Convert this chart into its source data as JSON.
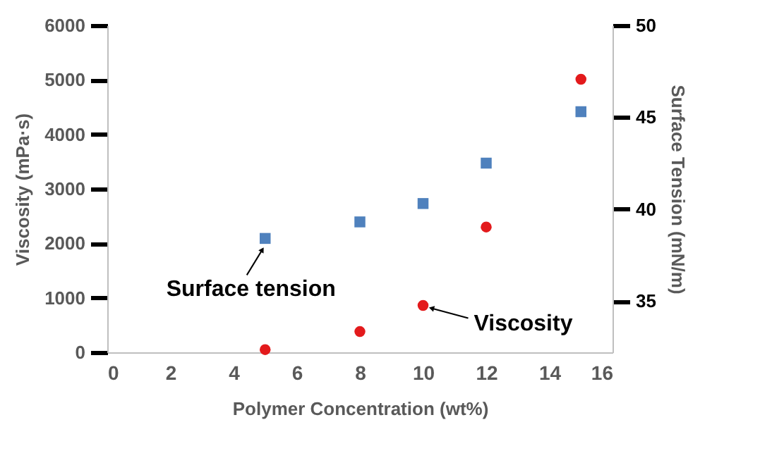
{
  "chart_data": {
    "type": "scatter",
    "xlabel": "Polymer Concentration (wt%)",
    "ylabel": "Viscosity (mPa·s)",
    "y2label": "Surface Tension (mN/m)",
    "x": [
      5,
      8,
      10,
      12,
      15
    ],
    "series": [
      {
        "name": "Viscosity",
        "color": "#e31a1c",
        "marker": "circle",
        "values": [
          50,
          380,
          860,
          2300,
          5010
        ]
      },
      {
        "name": "Surface tension",
        "color": "#4f81bd",
        "marker": "square",
        "axis": "y2",
        "values": [
          38.4,
          39.3,
          40.3,
          42.5,
          45.3
        ]
      }
    ],
    "xlim": [
      0,
      16
    ],
    "xticks": [
      0,
      2,
      4,
      6,
      8,
      10,
      12,
      14,
      16
    ],
    "ylim": [
      0,
      6000
    ],
    "yticks": [
      0,
      1000,
      2000,
      3000,
      4000,
      5000,
      6000
    ],
    "y2lim": [
      32.2,
      50
    ],
    "y2ticks": [
      35,
      40,
      45,
      50
    ],
    "grid": false,
    "legend": false
  }
}
